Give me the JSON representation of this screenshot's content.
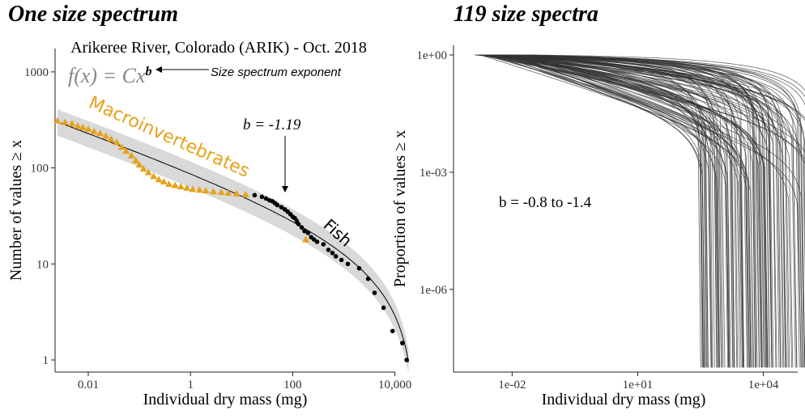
{
  "panel_titles": {
    "left": "One size spectrum",
    "right": "119 size spectra"
  },
  "colors": {
    "macro": "#E5A21A",
    "fish": "#000000",
    "ci_band": "#D9D9D9",
    "fit_line": "#000000",
    "spectra_lines": "#333333",
    "formula_gray": "#888888"
  },
  "chart_data": [
    {
      "type": "scatter",
      "title": "Arikeree River, Colorado (ARIK) - Oct. 2018",
      "xlabel": "Individual dry mass (mg)",
      "ylabel": "Number of values ≥ x",
      "xscale": "log",
      "yscale": "log",
      "x_ticks": [
        0.01,
        1,
        100,
        10000
      ],
      "x_tick_labels": [
        "0.01",
        "1",
        "100",
        "10,000"
      ],
      "y_ticks": [
        1,
        10,
        100,
        1000
      ],
      "y_tick_labels": [
        "1",
        "10",
        "100",
        "1000"
      ],
      "annotations": {
        "formula_prefix": "f(x) = Cx",
        "formula_exp": "b",
        "exponent_label": "Size spectrum exponent",
        "b_value": "b = -1.19",
        "macro_label": "Macroinvertebrates",
        "fish_label": "Fish"
      },
      "series": [
        {
          "name": "Macroinvertebrates",
          "marker": "triangle",
          "x": [
            0.0025,
            0.0035,
            0.0048,
            0.0062,
            0.0078,
            0.01,
            0.013,
            0.017,
            0.022,
            0.028,
            0.036,
            0.045,
            0.055,
            0.07,
            0.085,
            0.1,
            0.12,
            0.15,
            0.19,
            0.24,
            0.3,
            0.38,
            0.5,
            0.65,
            0.85,
            1.1,
            1.5,
            2.0,
            2.8,
            4.0,
            5.5,
            8.0,
            12.0,
            180.0
          ],
          "y": [
            310,
            300,
            290,
            275,
            265,
            255,
            240,
            230,
            215,
            200,
            185,
            165,
            150,
            135,
            120,
            108,
            98,
            90,
            82,
            76,
            72,
            68,
            66,
            64,
            62,
            60,
            59,
            58,
            57,
            56,
            55,
            54,
            53,
            18
          ]
        },
        {
          "name": "Fish",
          "marker": "circle",
          "x": [
            18,
            25,
            30,
            35,
            40,
            45,
            50,
            60,
            70,
            80,
            90,
            100,
            110,
            120,
            130,
            150,
            170,
            200,
            230,
            260,
            300,
            400,
            500,
            600,
            700,
            900,
            1200,
            2000,
            3000,
            4000,
            6000,
            9000,
            14000,
            17000
          ],
          "y": [
            52,
            50,
            48,
            46,
            45,
            43,
            41,
            39,
            37,
            35,
            33,
            31,
            30,
            28,
            26,
            24,
            22,
            21,
            19,
            18,
            17,
            16,
            14,
            13,
            12,
            11,
            10,
            9,
            7,
            5,
            3.5,
            2,
            1.5,
            1
          ]
        }
      ]
    },
    {
      "type": "line",
      "xlabel": "Individual dry mass (mg)",
      "ylabel": "Proportion of values ≥ x",
      "xscale": "log",
      "yscale": "log",
      "x_ticks": [
        0.01,
        10,
        10000
      ],
      "x_tick_labels": [
        "1e-02",
        "1e+01",
        "1e+04"
      ],
      "y_ticks": [
        1,
        0.001,
        1e-06
      ],
      "y_tick_labels": [
        "1e+00",
        "1e-03",
        "1e-06"
      ],
      "n_spectra": 119,
      "b_range": [
        -0.8,
        -1.4
      ],
      "annotation": "b = -0.8 to -1.4"
    }
  ]
}
